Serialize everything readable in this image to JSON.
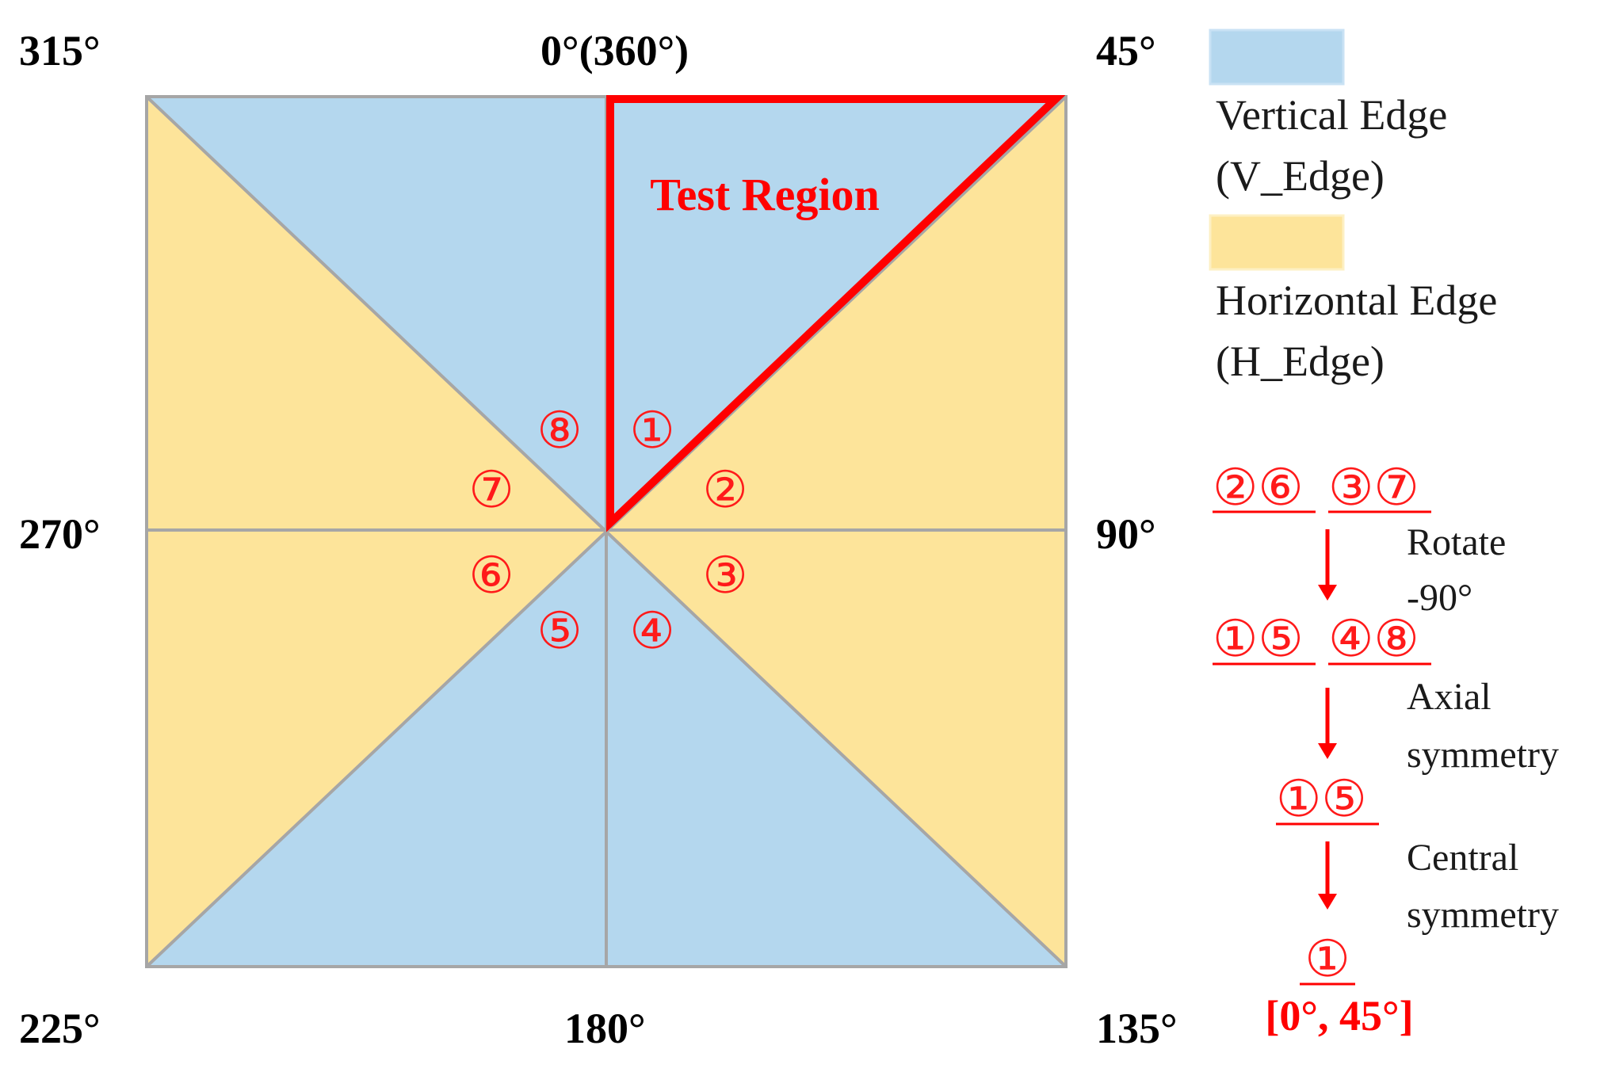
{
  "colors": {
    "vertical": "#b4d7ee",
    "horizontal": "#fde49a",
    "divider": "#a6a6a6",
    "highlight": "#ff0000"
  },
  "angles": {
    "top_left": "315°",
    "top_center": "0°(360°)",
    "top_right": "45°",
    "mid_left": "270°",
    "mid_right": "90°",
    "bottom_left": "225°",
    "bottom_center": "180°",
    "bottom_right": "135°"
  },
  "test_region_label": "Test Region",
  "sectors": [
    "①",
    "②",
    "③",
    "④",
    "⑤",
    "⑥",
    "⑦",
    "⑧"
  ],
  "legend": {
    "vertical_line1": "Vertical Edge",
    "vertical_line2": "(V_Edge)",
    "horizontal_line1": "Horizontal Edge",
    "horizontal_line2": "(H_Edge)"
  },
  "steps": {
    "group_a1": "②⑥",
    "group_a2": "③⑦",
    "step1_line1": "Rotate",
    "step1_line2": "-90°",
    "group_b1": "①⑤",
    "group_b2": "④⑧",
    "step2_line1": "Axial",
    "step2_line2": "symmetry",
    "group_c": "①⑤",
    "step3_line1": "Central",
    "step3_line2": "symmetry",
    "group_d": "①",
    "range": "[0°, 45°]"
  }
}
